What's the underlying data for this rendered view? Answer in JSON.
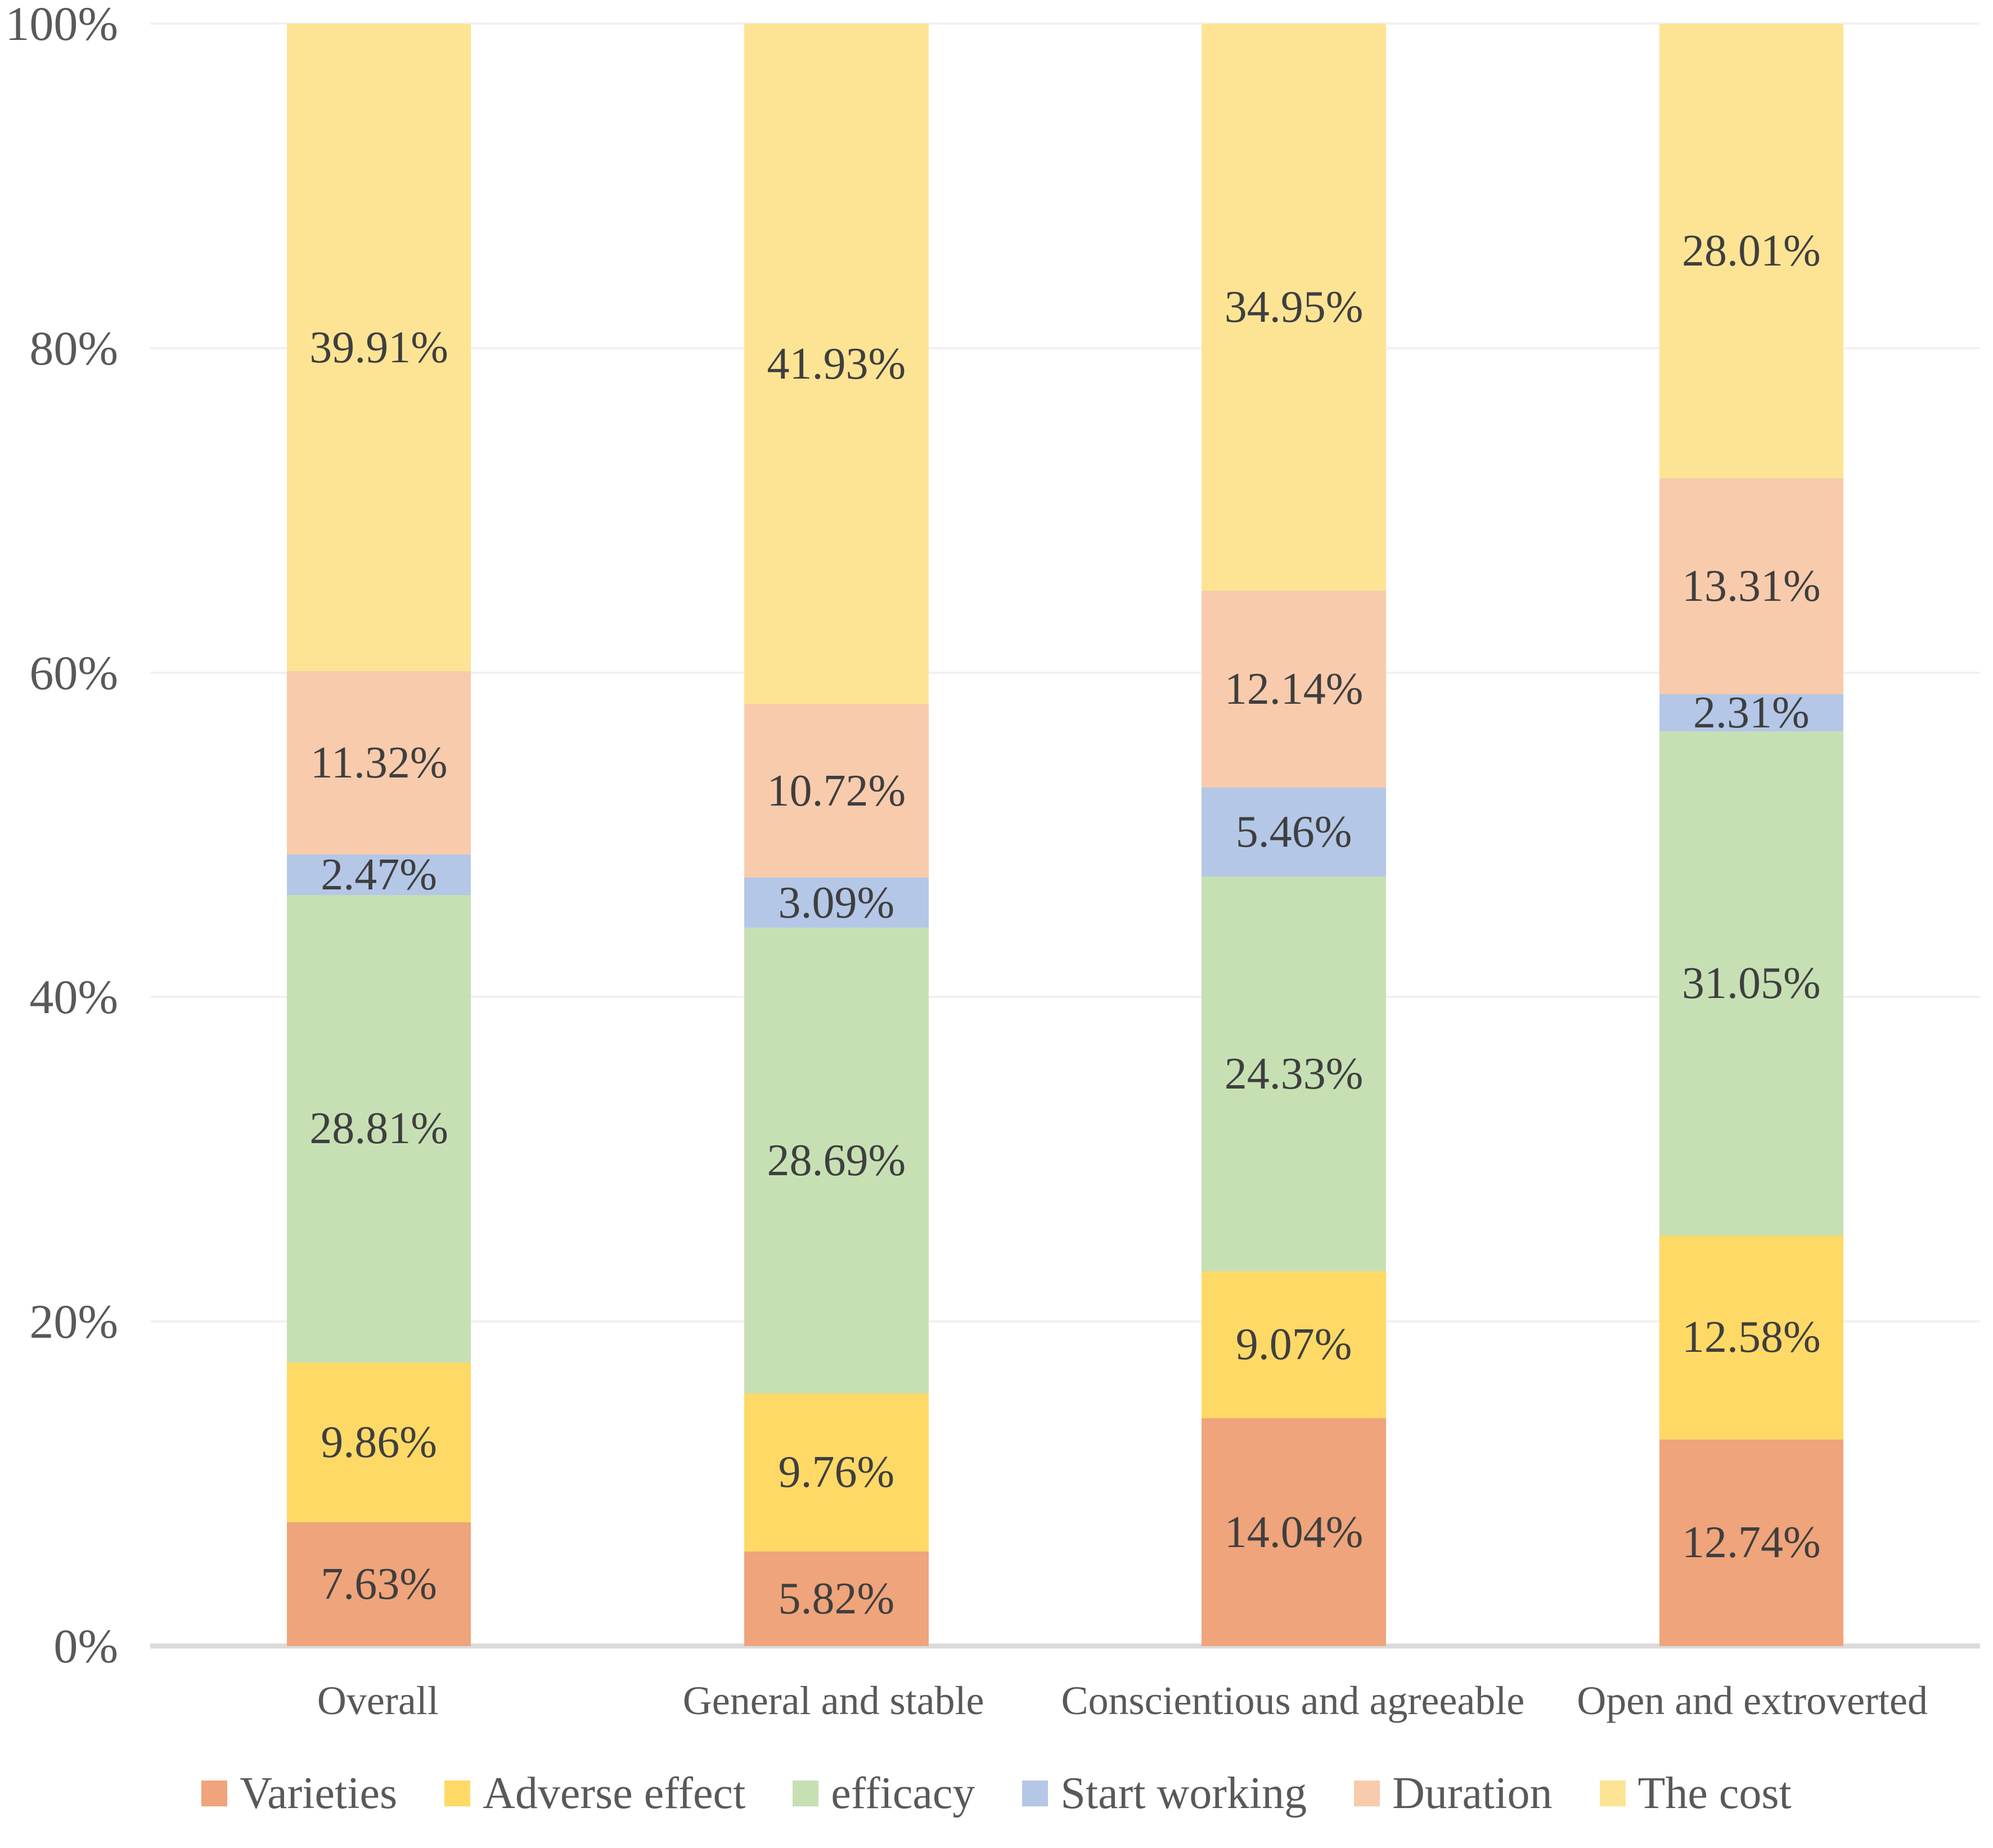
{
  "chart_data": {
    "type": "bar",
    "subtype": "stacked-100",
    "title": "",
    "xlabel": "",
    "ylabel": "",
    "categories": [
      "Overall",
      "General and stable",
      "Conscientious and agreeable",
      "Open and extroverted"
    ],
    "series": [
      {
        "name": "Varieties",
        "color": "#EFA47B",
        "values": [
          7.63,
          5.82,
          14.04,
          12.74
        ]
      },
      {
        "name": "Adverse effect",
        "color": "#FED966",
        "values": [
          9.86,
          9.76,
          9.07,
          12.58
        ]
      },
      {
        "name": "efficacy",
        "color": "#C6E0B4",
        "values": [
          28.81,
          28.69,
          24.33,
          31.05
        ]
      },
      {
        "name": "Start working",
        "color": "#B4C7E7",
        "values": [
          2.47,
          3.09,
          5.46,
          2.31
        ]
      },
      {
        "name": "Duration",
        "color": "#F8CBAD",
        "values": [
          11.32,
          10.72,
          12.14,
          13.31
        ]
      },
      {
        "name": "The cost",
        "color": "#FDE494",
        "values": [
          39.91,
          41.93,
          34.95,
          28.01
        ]
      }
    ],
    "data_labels": {
      "Overall": [
        "7.63%",
        "9.86%",
        "28.81%",
        "2.47%",
        "11.32%",
        "39.91%"
      ],
      "General and stable": [
        "5.82%",
        "9.76%",
        "28.69%",
        "3.09%",
        "10.72%",
        "41.93%"
      ],
      "Conscientious and agreeable": [
        "14.04%",
        "9.07%",
        "24.33%",
        "5.46%",
        "12.14%",
        "34.95%"
      ],
      "Open and extroverted": [
        "12.74%",
        "12.58%",
        "31.05%",
        "2.31%",
        "13.31%",
        "28.01%"
      ]
    },
    "y_axis": {
      "min": 0,
      "max": 100,
      "step": 20,
      "ticks": [
        "0%",
        "20%",
        "40%",
        "60%",
        "80%",
        "100%"
      ],
      "format": "percent"
    },
    "grid": "horizontal",
    "legend_position": "bottom"
  },
  "style_colors": {
    "background": "#FFFFFF",
    "gridline": "#F1F1F1",
    "baseline": "#DBDBDB",
    "axis_text": "#595959",
    "data_label_text": "#3F3F3F"
  }
}
